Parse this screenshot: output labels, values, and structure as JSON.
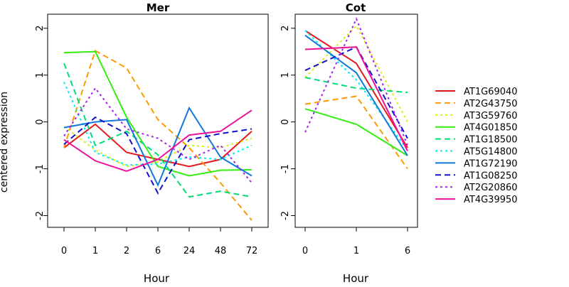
{
  "chart_data": [
    {
      "type": "line",
      "title": "Mer",
      "xlabel": "Hour",
      "ylabel": "centered expression",
      "categories": [
        "0",
        "1",
        "2",
        "6",
        "24",
        "48",
        "72"
      ],
      "ylim": [
        -2.25,
        2.3
      ],
      "yticks": [
        "-2",
        "-1",
        "0",
        "1",
        "2"
      ],
      "grid": false,
      "series": [
        {
          "name": "AT1G69040",
          "values": [
            -0.55,
            -0.05,
            -0.65,
            -0.8,
            -0.95,
            -0.8,
            -0.2
          ]
        },
        {
          "name": "AT2G43750",
          "values": [
            -0.55,
            1.52,
            1.15,
            0.05,
            -0.55,
            -1.3,
            -2.1
          ]
        },
        {
          "name": "AT3G59760",
          "values": [
            -0.1,
            -0.6,
            -0.95,
            -0.85,
            -0.5,
            -0.55,
            -0.35
          ]
        },
        {
          "name": "AT4G01850",
          "values": [
            1.48,
            1.5,
            0.1,
            -0.95,
            -1.15,
            -1.03,
            -1.02
          ]
        },
        {
          "name": "AT1G18500",
          "values": [
            1.25,
            -0.5,
            -0.2,
            -0.7,
            -1.6,
            -1.48,
            -1.6
          ]
        },
        {
          "name": "AT5G14800",
          "values": [
            0.85,
            -0.65,
            -0.92,
            -0.9,
            -0.75,
            -0.8,
            -0.5
          ]
        },
        {
          "name": "AT1G72190",
          "values": [
            -0.12,
            0.0,
            0.05,
            -1.35,
            0.3,
            -0.75,
            -1.15
          ]
        },
        {
          "name": "AT1G08250",
          "values": [
            -0.48,
            0.1,
            -0.25,
            -1.52,
            -0.38,
            -0.25,
            -0.15
          ]
        },
        {
          "name": "AT2G20860",
          "values": [
            -0.3,
            0.72,
            -0.15,
            -0.35,
            -0.8,
            -0.5,
            -1.3
          ]
        },
        {
          "name": "AT4G39950",
          "values": [
            -0.38,
            -0.83,
            -1.05,
            -0.8,
            -0.28,
            -0.2,
            0.25
          ]
        }
      ]
    },
    {
      "type": "line",
      "title": "Cot",
      "xlabel": "Hour",
      "categories": [
        "0",
        "1",
        "6"
      ],
      "ylim": [
        -2.25,
        2.3
      ],
      "yticks": [
        "-2",
        "-1",
        "0",
        "1",
        "2"
      ],
      "grid": false,
      "series": [
        {
          "name": "AT1G69040",
          "values": [
            1.95,
            1.25,
            -0.55
          ]
        },
        {
          "name": "AT2G43750",
          "values": [
            0.38,
            0.55,
            -1.0
          ]
        },
        {
          "name": "AT3G59760",
          "values": [
            0.95,
            2.05,
            0.0
          ]
        },
        {
          "name": "AT4G01850",
          "values": [
            0.28,
            -0.05,
            -0.72
          ]
        },
        {
          "name": "AT1G18500",
          "values": [
            0.95,
            0.72,
            0.63
          ]
        },
        {
          "name": "AT5G14800",
          "values": [
            1.95,
            0.9,
            -0.6
          ]
        },
        {
          "name": "AT1G72190",
          "values": [
            1.85,
            1.05,
            -0.72
          ]
        },
        {
          "name": "AT1G08250",
          "values": [
            1.1,
            1.6,
            -0.35
          ]
        },
        {
          "name": "AT2G20860",
          "values": [
            -0.22,
            2.2,
            -0.5
          ]
        },
        {
          "name": "AT4G39950",
          "values": [
            1.55,
            1.6,
            -0.62
          ]
        }
      ]
    }
  ],
  "legend": {
    "placement": "right",
    "entries": [
      {
        "name": "AT1G69040",
        "color": "#e41a1c",
        "dash": "solid"
      },
      {
        "name": "AT2G43750",
        "color": "#ff9900",
        "dash": "dashed"
      },
      {
        "name": "AT3G59760",
        "color": "#ddee11",
        "dash": "dotted"
      },
      {
        "name": "AT4G01850",
        "color": "#33ee11",
        "dash": "solid"
      },
      {
        "name": "AT1G18500",
        "color": "#00dd77",
        "dash": "dashed"
      },
      {
        "name": "AT5G14800",
        "color": "#00eeee",
        "dash": "dotted"
      },
      {
        "name": "AT1G72190",
        "color": "#1177dd",
        "dash": "solid"
      },
      {
        "name": "AT1G08250",
        "color": "#1111cc",
        "dash": "dashed"
      },
      {
        "name": "AT2G20860",
        "color": "#aa22ee",
        "dash": "dotted"
      },
      {
        "name": "AT4G39950",
        "color": "#ee1199",
        "dash": "solid"
      }
    ]
  }
}
